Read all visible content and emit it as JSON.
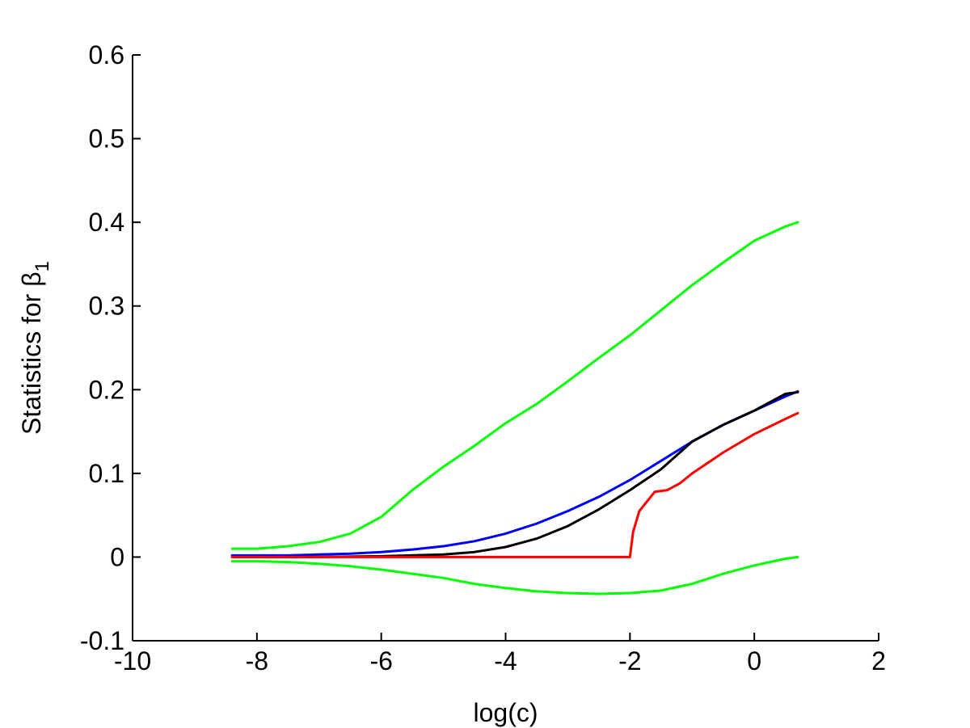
{
  "chart_data": {
    "type": "line",
    "title": "",
    "xlabel": "log(c)",
    "ylabel": "Statistics for β",
    "ylabel_subscript": "1",
    "xlim": [
      -10,
      2
    ],
    "ylim": [
      -0.1,
      0.6
    ],
    "xticks": [
      -10,
      -8,
      -6,
      -4,
      -2,
      0,
      2
    ],
    "yticks": [
      -0.1,
      0,
      0.1,
      0.2,
      0.3,
      0.4,
      0.5,
      0.6
    ],
    "xtick_labels": [
      "-10",
      "-8",
      "-6",
      "-4",
      "-2",
      "0",
      "2"
    ],
    "ytick_labels": [
      "-0.1",
      "0",
      "0.1",
      "0.2",
      "0.3",
      "0.4",
      "0.5",
      "0.6"
    ],
    "grid": false,
    "legend": "none",
    "series": [
      {
        "color": "#00ff00",
        "x": [
          -8.4,
          -8.0,
          -7.5,
          -7.0,
          -6.5,
          -6.0,
          -5.5,
          -5.0,
          -4.5,
          -4.0,
          -3.5,
          -3.0,
          -2.5,
          -2.0,
          -1.5,
          -1.0,
          -0.5,
          0.0,
          0.5,
          0.7
        ],
        "y": [
          0.01,
          0.01,
          0.013,
          0.018,
          0.028,
          0.048,
          0.08,
          0.108,
          0.133,
          0.16,
          0.183,
          0.21,
          0.238,
          0.265,
          0.295,
          0.325,
          0.352,
          0.378,
          0.395,
          0.4
        ]
      },
      {
        "color": "#00ff00",
        "x": [
          -8.4,
          -8.0,
          -7.5,
          -7.0,
          -6.5,
          -6.0,
          -5.5,
          -5.0,
          -4.5,
          -4.0,
          -3.5,
          -3.0,
          -2.5,
          -2.0,
          -1.5,
          -1.0,
          -0.5,
          0.0,
          0.5,
          0.7
        ],
        "y": [
          -0.005,
          -0.005,
          -0.006,
          -0.008,
          -0.011,
          -0.015,
          -0.02,
          -0.025,
          -0.032,
          -0.037,
          -0.041,
          -0.043,
          -0.044,
          -0.043,
          -0.04,
          -0.032,
          -0.02,
          -0.01,
          -0.002,
          0.0
        ]
      },
      {
        "color": "#0000ff",
        "x": [
          -8.4,
          -8.0,
          -7.5,
          -7.0,
          -6.5,
          -6.0,
          -5.5,
          -5.0,
          -4.5,
          -4.0,
          -3.5,
          -3.0,
          -2.5,
          -2.0,
          -1.5,
          -1.0,
          -0.5,
          0.0,
          0.5,
          0.7
        ],
        "y": [
          0.002,
          0.002,
          0.002,
          0.003,
          0.004,
          0.006,
          0.009,
          0.013,
          0.019,
          0.028,
          0.04,
          0.055,
          0.072,
          0.092,
          0.115,
          0.138,
          0.158,
          0.175,
          0.192,
          0.198
        ]
      },
      {
        "color": "#000000",
        "x": [
          -8.4,
          -8.0,
          -7.0,
          -6.0,
          -5.0,
          -4.5,
          -4.0,
          -3.5,
          -3.0,
          -2.5,
          -2.0,
          -1.5,
          -1.0,
          -0.5,
          0.0,
          0.5,
          0.7
        ],
        "y": [
          0.0,
          0.0,
          0.0,
          0.001,
          0.003,
          0.006,
          0.012,
          0.022,
          0.037,
          0.057,
          0.08,
          0.105,
          0.138,
          0.158,
          0.175,
          0.195,
          0.197
        ]
      },
      {
        "color": "#ff0000",
        "x": [
          -8.4,
          -7.0,
          -6.0,
          -5.0,
          -4.0,
          -3.0,
          -2.0,
          -1.95,
          -1.85,
          -1.6,
          -1.4,
          -1.2,
          -1.0,
          -0.5,
          0.0,
          0.5,
          0.7
        ],
        "y": [
          0.0,
          0.0,
          0.0,
          0.0,
          0.0,
          0.0,
          0.0,
          0.03,
          0.055,
          0.078,
          0.08,
          0.088,
          0.1,
          0.125,
          0.147,
          0.165,
          0.172
        ]
      }
    ]
  }
}
